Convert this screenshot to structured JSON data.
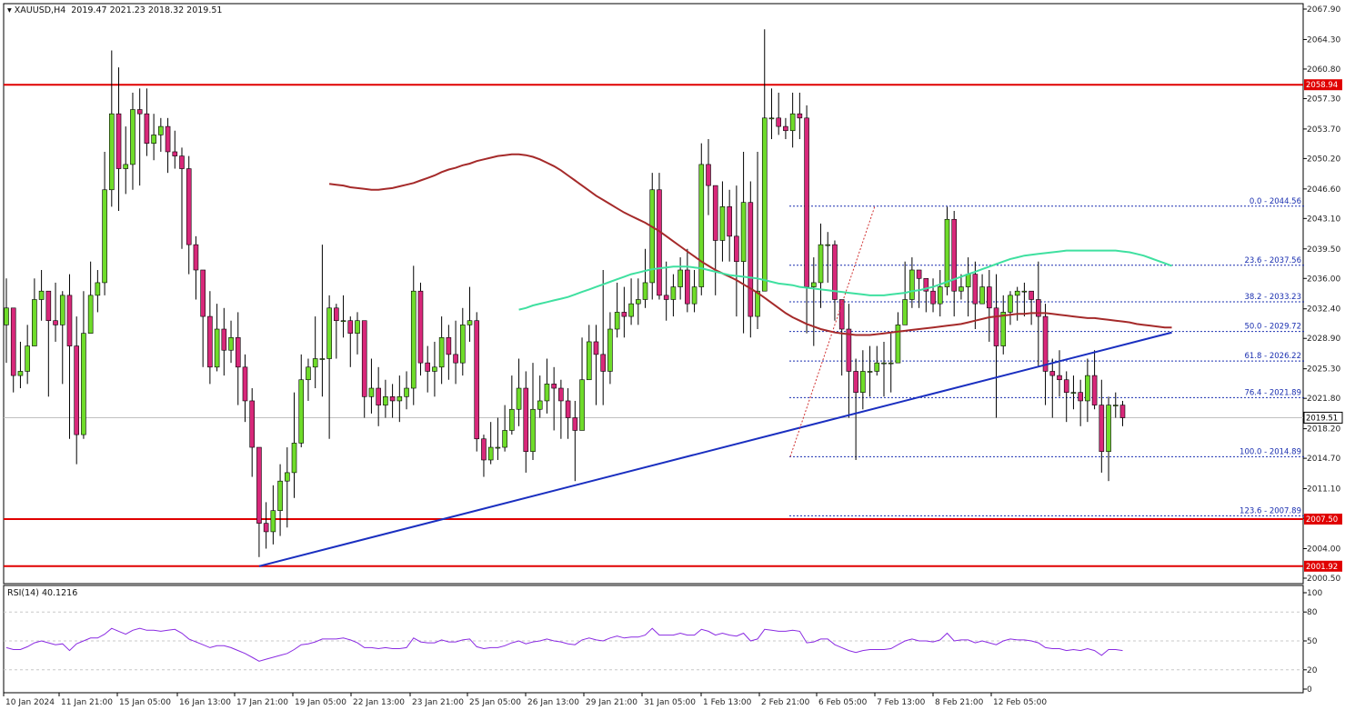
{
  "header": {
    "symbol": "XAUUSD,H4",
    "ohlc": "2019.47 2021.23 2018.32 2019.51"
  },
  "rsi_label": "RSI(14) 40.1216",
  "colors": {
    "background": "#ffffff",
    "bull_candle": "#6fdc2a",
    "bear_candle": "#d8287a",
    "sma_fast": "#a52a2a",
    "sma_slow": "#3fe0a0",
    "support_resistance": "#e00000",
    "trendline": "#1a2fc0",
    "fib_lines": "#1a2fb0",
    "rsi_line": "#8a2be2"
  },
  "chart_data": {
    "type": "candlestick",
    "symbol": "XAUUSD",
    "timeframe": "H4",
    "ylim": [
      2000.5,
      2067.9
    ],
    "y_ticks": [
      "2067.90",
      "2064.30",
      "2060.80",
      "2057.30",
      "2053.70",
      "2050.20",
      "2046.60",
      "2043.10",
      "2039.50",
      "2036.00",
      "2032.40",
      "2028.90",
      "2025.30",
      "2021.80",
      "2018.20",
      "2014.70",
      "2011.10",
      "2007.60",
      "2004.00",
      "2000.50"
    ],
    "x_ticks": [
      "10 Jan 2024",
      "11 Jan 21:00",
      "15 Jan 05:00",
      "16 Jan 13:00",
      "17 Jan 21:00",
      "19 Jan 05:00",
      "22 Jan 13:00",
      "23 Jan 21:00",
      "25 Jan 05:00",
      "26 Jan 13:00",
      "29 Jan 21:00",
      "31 Jan 05:00",
      "1 Feb 13:00",
      "2 Feb 21:00",
      "6 Feb 05:00",
      "7 Feb 13:00",
      "8 Feb 21:00",
      "12 Feb 05:00"
    ],
    "closes": [
      2032.5,
      2024.5,
      2025.0,
      2028.0,
      2033.5,
      2034.5,
      2031.0,
      2030.5,
      2034.0,
      2028.0,
      2017.5,
      2029.5,
      2034.0,
      2035.5,
      2046.5,
      2055.5,
      2049.0,
      2049.5,
      2056.0,
      2055.5,
      2052.0,
      2053.0,
      2054.0,
      2051.0,
      2050.5,
      2049.0,
      2040.0,
      2037.0,
      2031.5,
      2025.5,
      2030.0,
      2027.5,
      2029.0,
      2025.5,
      2021.5,
      2016.0,
      2007.0,
      2006.0,
      2008.5,
      2012.0,
      2013.0,
      2016.5,
      2024.0,
      2025.5,
      2026.5,
      2026.5,
      2032.5,
      2031.0,
      2031.0,
      2029.5,
      2031.0,
      2022.0,
      2023.0,
      2021.0,
      2022.0,
      2021.5,
      2022.0,
      2023.0,
      2034.5,
      2026.0,
      2025.0,
      2025.5,
      2029.0,
      2027.0,
      2026.0,
      2030.5,
      2031.0,
      2017.0,
      2014.5,
      2016.0,
      2016.0,
      2018.0,
      2020.5,
      2023.0,
      2015.5,
      2020.5,
      2021.5,
      2023.5,
      2023.0,
      2021.5,
      2019.5,
      2018.0,
      2024.0,
      2028.5,
      2027.0,
      2025.0,
      2030.0,
      2032.0,
      2031.5,
      2033.0,
      2033.5,
      2035.5,
      2046.5,
      2034.0,
      2033.5,
      2035.0,
      2037.0,
      2033.0,
      2035.0,
      2049.5,
      2047.0,
      2040.5,
      2044.5,
      2041.0,
      2038.0,
      2045.0,
      2031.5,
      2034.5,
      2055.0,
      2055.0,
      2054.0,
      2053.5,
      2055.5,
      2055.0,
      2035.0,
      2035.5,
      2040.0,
      2040.0,
      2033.5,
      2030.0,
      2025.0,
      2022.5,
      2025.0,
      2025.0,
      2026.0,
      2026.0,
      2026.0,
      2030.5,
      2033.5,
      2037.0,
      2036.0,
      2034.5,
      2033.0,
      2035.0,
      2043.0,
      2034.5,
      2035.0,
      2036.5,
      2033.0,
      2035.0,
      2032.5,
      2028.0,
      2032.0,
      2034.0,
      2034.5,
      2034.5,
      2033.5,
      2031.5,
      2025.0,
      2024.5,
      2024.0,
      2022.5,
      2022.5,
      2021.5,
      2024.5,
      2021.0,
      2015.5,
      2021.0,
      2021.0,
      2019.5
    ],
    "highs": [
      2036.0,
      2032.5,
      2028.5,
      2030.5,
      2036.0,
      2037.0,
      2034.5,
      2035.5,
      2034.5,
      2036.5,
      2031.5,
      2034.5,
      2038.0,
      2037.0,
      2051.0,
      2063.0,
      2061.0,
      2054.0,
      2058.0,
      2058.5,
      2058.5,
      2055.5,
      2055.0,
      2055.0,
      2053.5,
      2051.5,
      2050.5,
      2041.0,
      2034.5,
      2034.5,
      2033.0,
      2032.5,
      2031.0,
      2032.0,
      2027.0,
      2023.0,
      2011.0,
      2009.5,
      2011.5,
      2014.0,
      2016.0,
      2022.5,
      2027.0,
      2026.5,
      2031.5,
      2040.0,
      2034.0,
      2033.0,
      2034.0,
      2031.5,
      2032.0,
      2031.0,
      2026.5,
      2025.5,
      2024.0,
      2023.5,
      2024.5,
      2025.0,
      2037.5,
      2035.5,
      2028.0,
      2028.5,
      2031.5,
      2030.5,
      2031.0,
      2032.5,
      2035.0,
      2032.0,
      2017.5,
      2019.0,
      2019.5,
      2021.0,
      2024.5,
      2026.5,
      2025.0,
      2026.0,
      2024.5,
      2026.5,
      2025.5,
      2024.0,
      2023.0,
      2021.5,
      2029.0,
      2030.5,
      2030.5,
      2037.0,
      2032.0,
      2035.5,
      2035.0,
      2036.0,
      2036.0,
      2039.5,
      2048.5,
      2048.5,
      2038.0,
      2036.5,
      2038.5,
      2039.5,
      2037.0,
      2052.0,
      2052.5,
      2047.0,
      2047.5,
      2046.5,
      2047.0,
      2051.0,
      2047.5,
      2051.0,
      2065.5,
      2058.5,
      2058.0,
      2055.0,
      2058.0,
      2058.0,
      2056.5,
      2038.5,
      2042.5,
      2041.5,
      2040.5,
      2033.0,
      2033.0,
      2026.5,
      2027.5,
      2028.0,
      2028.0,
      2028.5,
      2029.5,
      2032.0,
      2038.0,
      2038.5,
      2036.5,
      2035.0,
      2036.0,
      2037.0,
      2044.5,
      2044.0,
      2036.5,
      2038.5,
      2038.0,
      2036.5,
      2037.0,
      2036.5,
      2034.0,
      2034.5,
      2035.0,
      2035.5,
      2034.0,
      2038.0,
      2033.0,
      2026.5,
      2027.5,
      2025.0,
      2024.5,
      2024.0,
      2026.5,
      2027.5,
      2024.0,
      2022.0,
      2022.5,
      2021.5
    ],
    "lows": [
      2026.0,
      2022.5,
      2023.0,
      2023.5,
      2028.0,
      2031.0,
      2022.0,
      2028.5,
      2023.5,
      2017.0,
      2014.0,
      2017.0,
      2029.5,
      2032.0,
      2034.0,
      2044.5,
      2044.0,
      2046.0,
      2046.5,
      2047.0,
      2050.5,
      2050.0,
      2051.0,
      2048.5,
      2049.0,
      2039.5,
      2036.5,
      2033.5,
      2025.5,
      2023.5,
      2025.0,
      2024.5,
      2026.0,
      2021.0,
      2019.0,
      2012.5,
      2003.0,
      2004.0,
      2004.5,
      2005.5,
      2006.5,
      2010.0,
      2016.0,
      2021.5,
      2023.0,
      2022.0,
      2017.0,
      2026.5,
      2029.0,
      2025.5,
      2027.0,
      2019.5,
      2020.0,
      2018.5,
      2019.5,
      2019.5,
      2019.0,
      2020.5,
      2021.0,
      2024.5,
      2022.5,
      2022.0,
      2023.5,
      2024.0,
      2023.5,
      2024.5,
      2028.5,
      2015.5,
      2012.5,
      2014.0,
      2014.5,
      2015.5,
      2017.5,
      2018.5,
      2013.0,
      2014.5,
      2019.5,
      2020.0,
      2018.0,
      2017.0,
      2017.0,
      2012.0,
      2022.5,
      2026.0,
      2021.0,
      2021.0,
      2023.5,
      2029.0,
      2029.0,
      2030.5,
      2030.5,
      2032.5,
      2033.5,
      2033.5,
      2031.0,
      2031.5,
      2033.5,
      2032.0,
      2032.0,
      2034.0,
      2043.5,
      2034.0,
      2038.0,
      2038.0,
      2031.5,
      2029.5,
      2029.0,
      2030.0,
      2042.0,
      2052.5,
      2053.0,
      2052.5,
      2051.5,
      2052.5,
      2029.5,
      2028.0,
      2032.5,
      2035.5,
      2031.0,
      2024.5,
      2019.5,
      2014.5,
      2020.5,
      2022.0,
      2024.5,
      2022.0,
      2022.5,
      2029.0,
      2031.0,
      2032.5,
      2032.5,
      2032.0,
      2032.0,
      2031.5,
      2034.0,
      2031.5,
      2033.5,
      2031.5,
      2030.0,
      2033.0,
      2028.5,
      2019.5,
      2027.0,
      2030.5,
      2031.0,
      2031.5,
      2030.5,
      2025.5,
      2021.0,
      2019.5,
      2022.0,
      2019.0,
      2020.5,
      2018.5,
      2019.0,
      2020.5,
      2013.0,
      2012.0,
      2019.5,
      2018.5
    ],
    "series": [
      {
        "values": [
          2047.2,
          2047.1,
          2047.0,
          2046.8,
          2046.7,
          2046.6,
          2046.5,
          2046.5,
          2046.6,
          2046.7,
          2046.9,
          2047.1,
          2047.3,
          2047.6,
          2047.9,
          2048.2,
          2048.6,
          2048.9,
          2049.1,
          2049.4,
          2049.6,
          2049.9,
          2050.1,
          2050.3,
          2050.5,
          2050.6,
          2050.7,
          2050.7,
          2050.6,
          2050.4,
          2050.1,
          2049.7,
          2049.3,
          2048.8,
          2048.2,
          2047.6,
          2047.0,
          2046.4,
          2045.8,
          2045.3,
          2044.8,
          2044.3,
          2043.8,
          2043.4,
          2043.0,
          2042.6,
          2042.1,
          2041.6,
          2041.0,
          2040.4,
          2039.8,
          2039.2,
          2038.6,
          2038.0,
          2037.5,
          2037.0,
          2036.6,
          2036.2,
          2035.8,
          2035.3,
          2034.8,
          2034.3,
          2033.7,
          2033.1,
          2032.5,
          2031.9,
          2031.4,
          2031.0,
          2030.6,
          2030.3,
          2030.0,
          2029.8,
          2029.6,
          2029.5,
          2029.4,
          2029.3,
          2029.3,
          2029.3,
          2029.4,
          2029.5,
          2029.6,
          2029.7,
          2029.8,
          2029.9,
          2030.0,
          2030.1,
          2030.2,
          2030.3,
          2030.4,
          2030.5,
          2030.6,
          2030.8,
          2031.0,
          2031.2,
          2031.4,
          2031.5,
          2031.6,
          2031.7,
          2031.8,
          2031.8,
          2031.9,
          2031.9,
          2031.9,
          2031.8,
          2031.7,
          2031.6,
          2031.5,
          2031.4,
          2031.3,
          2031.3,
          2031.2,
          2031.1,
          2031.0,
          2030.9,
          2030.8,
          2030.6,
          2030.5,
          2030.4,
          2030.3,
          2030.2,
          2030.2
        ]
      },
      {
        "values": [
          2032.3,
          2032.5,
          2032.8,
          2033.0,
          2033.2,
          2033.4,
          2033.6,
          2033.8,
          2034.1,
          2034.4,
          2034.7,
          2035.0,
          2035.3,
          2035.6,
          2035.9,
          2036.2,
          2036.5,
          2036.7,
          2036.9,
          2037.1,
          2037.2,
          2037.3,
          2037.4,
          2037.4,
          2037.4,
          2037.3,
          2037.2,
          2037.0,
          2036.8,
          2036.6,
          2036.4,
          2036.3,
          2036.2,
          2036.1,
          2036.0,
          2035.8,
          2035.6,
          2035.4,
          2035.3,
          2035.2,
          2035.0,
          2034.9,
          2034.8,
          2034.7,
          2034.6,
          2034.5,
          2034.4,
          2034.3,
          2034.2,
          2034.1,
          2034.0,
          2034.0,
          2034.0,
          2034.1,
          2034.2,
          2034.3,
          2034.5,
          2034.6,
          2034.8,
          2035.0,
          2035.3,
          2035.6,
          2035.9,
          2036.2,
          2036.5,
          2036.8,
          2037.1,
          2037.4,
          2037.7,
          2038.0,
          2038.3,
          2038.5,
          2038.7,
          2038.8,
          2038.9,
          2039.0,
          2039.1,
          2039.2,
          2039.3,
          2039.3,
          2039.3,
          2039.3,
          2039.3,
          2039.3,
          2039.3,
          2039.3,
          2039.2,
          2039.1,
          2038.9,
          2038.7,
          2038.4,
          2038.1,
          2037.8,
          2037.5
        ]
      }
    ],
    "horizontal_levels": [
      {
        "label": "2058.94",
        "value": 2058.94
      },
      {
        "label": "2007.50",
        "value": 2007.5
      },
      {
        "label": "2001.92",
        "value": 2001.92
      }
    ],
    "trendline": {
      "from": [
        36,
        2001.92
      ],
      "to": [
        166,
        2029.6
      ]
    },
    "fibonacci": [
      {
        "label": "0.0 - 2044.56",
        "value": 2044.56
      },
      {
        "label": "23.6 - 2037.56",
        "value": 2037.56
      },
      {
        "label": "38.2 - 2033.23",
        "value": 2033.23
      },
      {
        "label": "50.0 - 2029.72",
        "value": 2029.72
      },
      {
        "label": "61.8 - 2026.22",
        "value": 2026.22
      },
      {
        "label": "76.4 - 2021.89",
        "value": 2021.89
      },
      {
        "label": "100.0 - 2014.89",
        "value": 2014.89
      },
      {
        "label": "123.6 - 2007.89",
        "value": 2007.89
      }
    ],
    "current_price": "2019.51",
    "rsi": {
      "ylim": [
        0,
        100
      ],
      "y_ticks": [
        "100",
        "80",
        "50",
        "20",
        "0"
      ],
      "values": [
        43,
        41,
        41,
        44,
        48,
        50,
        48,
        46,
        47,
        40,
        47,
        50,
        53,
        53,
        57,
        63,
        60,
        57,
        61,
        63,
        61,
        61,
        60,
        61,
        62,
        58,
        52,
        49,
        46,
        43,
        45,
        45,
        43,
        40,
        37,
        33,
        29,
        31,
        33,
        35,
        37,
        41,
        46,
        47,
        49,
        52,
        52,
        52,
        53,
        51,
        48,
        43,
        43,
        42,
        43,
        42,
        42,
        43,
        53,
        49,
        48,
        48,
        51,
        49,
        49,
        51,
        52,
        44,
        42,
        43,
        43,
        45,
        48,
        50,
        47,
        49,
        50,
        52,
        50,
        49,
        47,
        46,
        51,
        53,
        51,
        50,
        53,
        55,
        53,
        54,
        54,
        56,
        63,
        56,
        56,
        56,
        58,
        56,
        56,
        62,
        60,
        56,
        58,
        56,
        55,
        58,
        50,
        52,
        62,
        61,
        60,
        60,
        61,
        60,
        48,
        49,
        52,
        52,
        46,
        43,
        40,
        38,
        40,
        41,
        41,
        41,
        42,
        46,
        50,
        52,
        50,
        50,
        49,
        51,
        58,
        50,
        51,
        51,
        48,
        50,
        48,
        46,
        50,
        52,
        51,
        51,
        50,
        48,
        43,
        42,
        42,
        40,
        41,
        40,
        42,
        40,
        35,
        41,
        41,
        40
      ]
    }
  }
}
